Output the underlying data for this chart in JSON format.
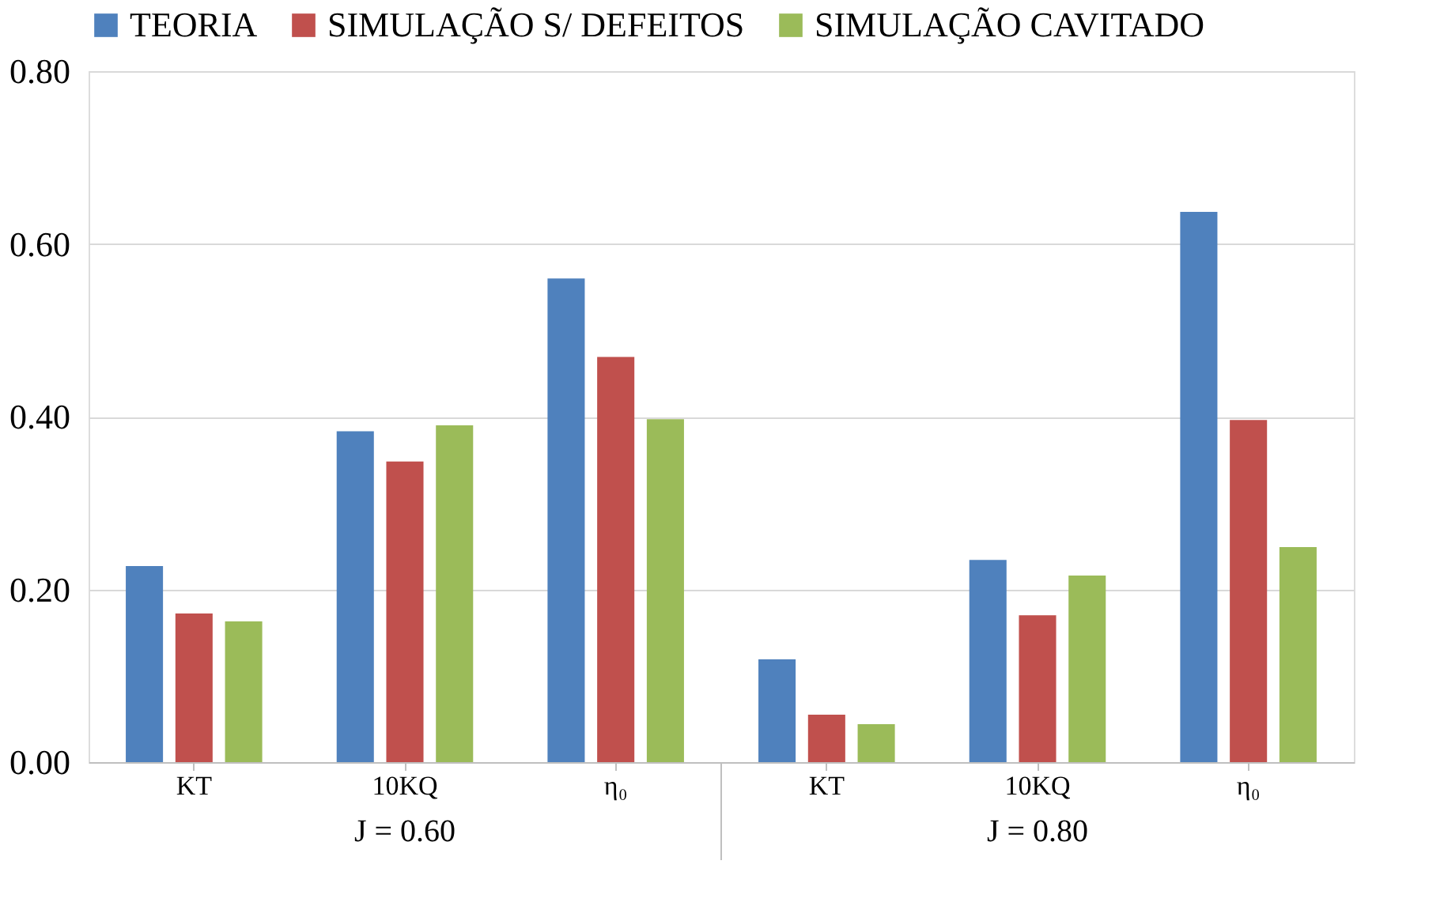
{
  "chart_data": {
    "type": "bar",
    "categories": [
      "KT",
      "10KQ",
      "η₀",
      "KT",
      "10KQ",
      "η₀"
    ],
    "series": [
      {
        "name": "TEORIA",
        "color": "#4f81bd",
        "values": [
          0.227,
          0.383,
          0.56,
          0.119,
          0.234,
          0.637
        ]
      },
      {
        "name": "SIMULAÇÃO S/ DEFEITOS",
        "color": "#c0504d",
        "values": [
          0.172,
          0.348,
          0.469,
          0.055,
          0.17,
          0.396
        ]
      },
      {
        "name": "SIMULAÇÃO CAVITADO",
        "color": "#9bbb59",
        "values": [
          0.163,
          0.39,
          0.397,
          0.044,
          0.216,
          0.249
        ]
      }
    ],
    "annotations": [
      "J = 0.60",
      "J = 0.80"
    ],
    "ylim": [
      0,
      0.8
    ],
    "yticks": [
      {
        "value": 0,
        "label": "0.00"
      },
      {
        "value": 0.2,
        "label": "0.20"
      },
      {
        "value": 0.4,
        "label": "0.40"
      },
      {
        "value": 0.6,
        "label": "0.60"
      },
      {
        "value": 0.8,
        "label": "0.80"
      }
    ],
    "grid": "y",
    "legend": "top"
  }
}
